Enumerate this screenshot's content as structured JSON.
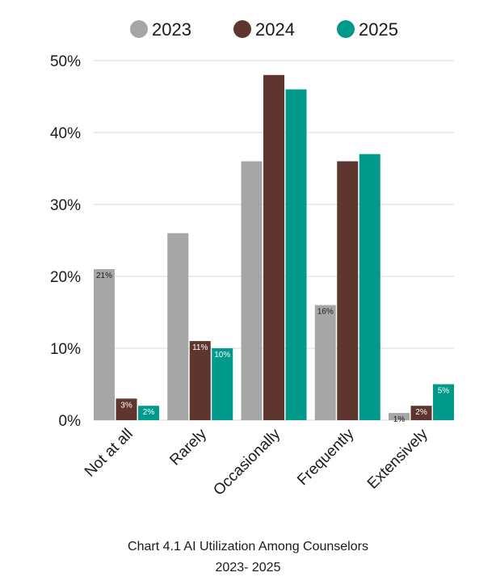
{
  "chart_data": {
    "type": "bar",
    "title": "Chart 4.1 AI Utilization Among Counselors",
    "subtitle": "2023- 2025",
    "xlabel": "",
    "ylabel": "",
    "categories": [
      "Not at all",
      "Rarely",
      "Occasionally",
      "Frequently",
      "Extensively"
    ],
    "series": [
      {
        "name": "2023",
        "color": "#a6a6a6",
        "label_color": "#1a1a1a",
        "values": [
          21,
          26,
          36,
          16,
          1
        ],
        "data_labels": [
          "21%",
          "",
          "",
          "16%",
          "1%"
        ]
      },
      {
        "name": "2024",
        "color": "#5e352f",
        "label_color": "#ffffff",
        "values": [
          3,
          11,
          48,
          36,
          2
        ],
        "data_labels": [
          "3%",
          "11%",
          "",
          "",
          "2%"
        ]
      },
      {
        "name": "2025",
        "color": "#00998a",
        "label_color": "#ffffff",
        "values": [
          2,
          10,
          46,
          37,
          5
        ],
        "data_labels": [
          "2%",
          "10%",
          "",
          "",
          "5%"
        ]
      }
    ],
    "yticks": [
      {
        "value": 0,
        "label": "0%"
      },
      {
        "value": 10,
        "label": "10%"
      },
      {
        "value": 20,
        "label": "20%"
      },
      {
        "value": 30,
        "label": "30%"
      },
      {
        "value": 40,
        "label": "40%"
      },
      {
        "value": 50,
        "label": "50%"
      }
    ],
    "ylim": [
      0,
      50
    ],
    "grid": true,
    "legend_position": "top-center",
    "gridline_color": "#d9d9d9"
  }
}
